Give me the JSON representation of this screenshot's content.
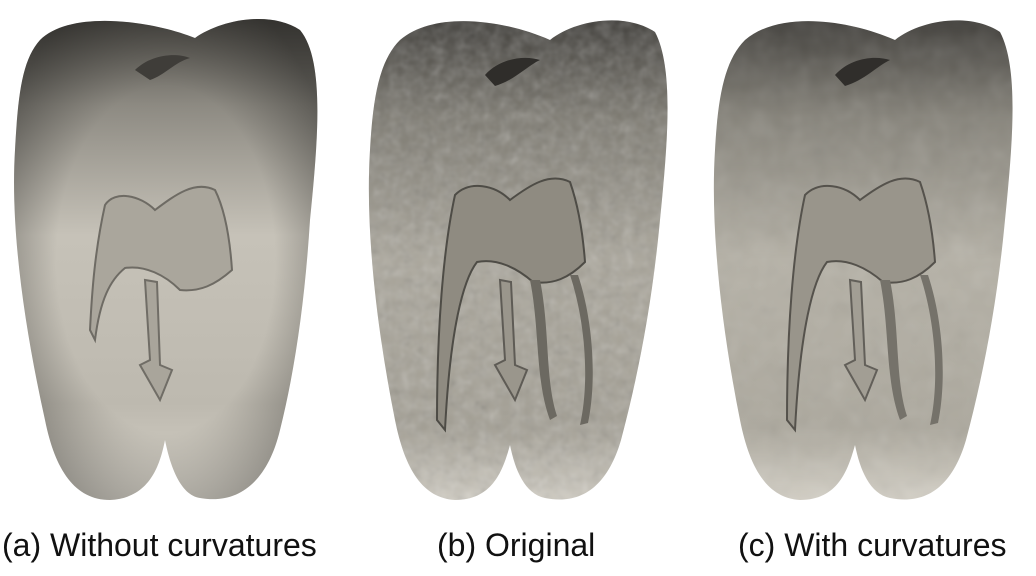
{
  "figure": {
    "panels": [
      {
        "caption": "(a) Without curvatures",
        "shading": "smooth"
      },
      {
        "caption": "(b) Original",
        "shading": "noisy"
      },
      {
        "caption": "(c) With curvatures",
        "shading": "detailed"
      }
    ],
    "colors": {
      "tooth_light": "#cfcbc1",
      "tooth_mid": "#9c988e",
      "tooth_dark": "#4a4843",
      "canal_dark": "#3a3834"
    }
  }
}
